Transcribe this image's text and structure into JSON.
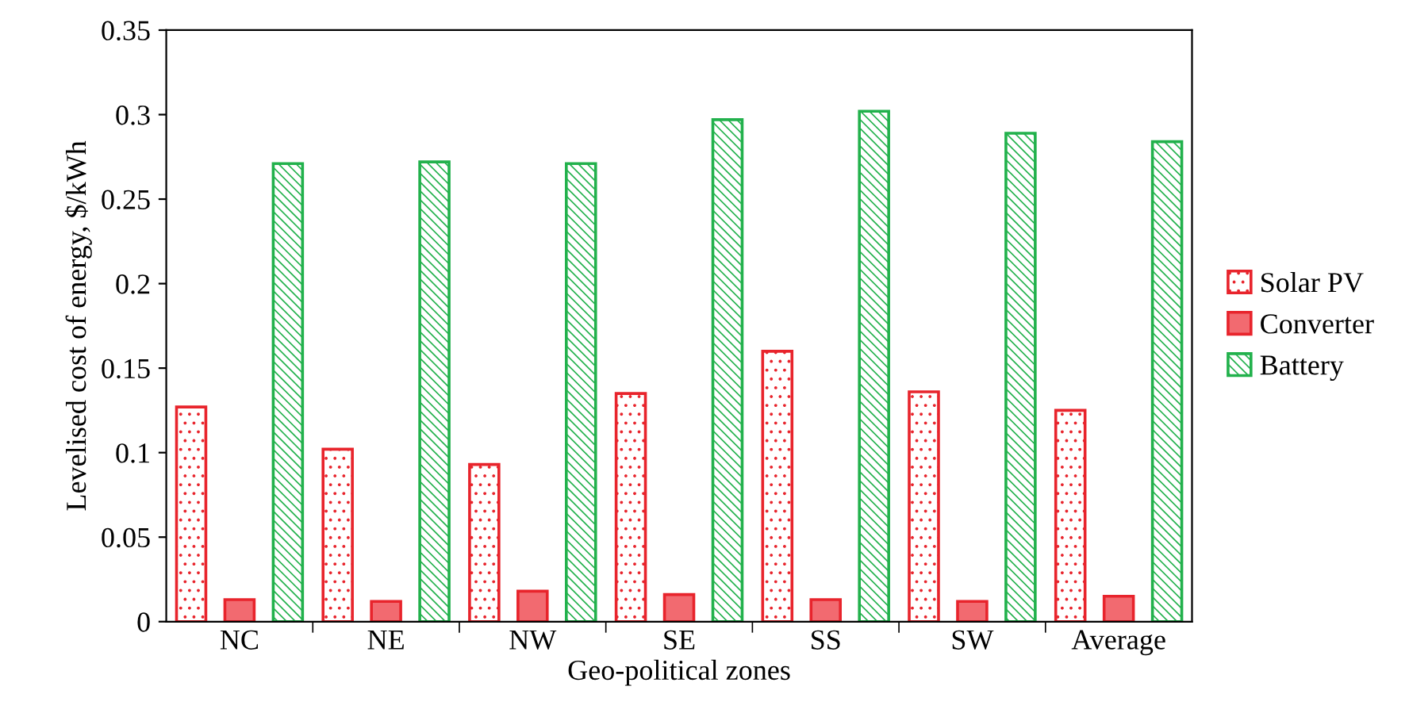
{
  "chart_data": {
    "type": "bar",
    "xlabel": "Geo-political zones",
    "ylabel": "Levelised cost of energy, $/kWh",
    "categories": [
      "NC",
      "NE",
      "NW",
      "SE",
      "SS",
      "SW",
      "Average"
    ],
    "series": [
      {
        "name": "Solar PV",
        "color": "#e8242c",
        "values": [
          0.127,
          0.102,
          0.093,
          0.135,
          0.16,
          0.136,
          0.125
        ]
      },
      {
        "name": "Converter",
        "color": "#e8242c",
        "values": [
          0.013,
          0.012,
          0.018,
          0.016,
          0.013,
          0.012,
          0.015
        ]
      },
      {
        "name": "Battery",
        "color": "#22b14c",
        "values": [
          0.271,
          0.272,
          0.271,
          0.297,
          0.302,
          0.289,
          0.284
        ]
      }
    ],
    "ylim": [
      0,
      0.35
    ],
    "yticks": [
      0,
      0.05,
      0.1,
      0.15,
      0.2,
      0.25,
      0.3,
      0.35
    ],
    "grid": false,
    "legend": "right"
  }
}
